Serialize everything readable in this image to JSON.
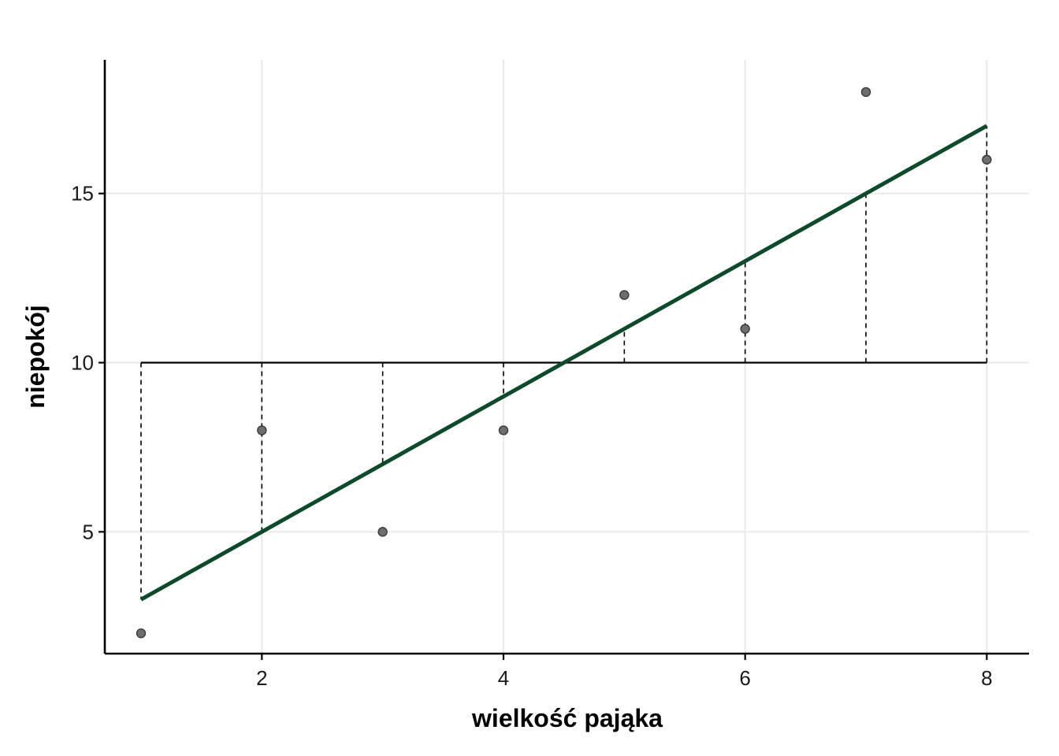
{
  "chart_data": {
    "type": "scatter",
    "xlabel": "wielkość pająka",
    "ylabel": "niepokój",
    "xlim": [
      0.7,
      8.35
    ],
    "ylim": [
      1.4,
      18.95
    ],
    "x_ticks": [
      2,
      4,
      6,
      8
    ],
    "y_ticks": [
      5,
      10,
      15
    ],
    "grid": true,
    "points": {
      "x": [
        1,
        2,
        3,
        4,
        5,
        6,
        7,
        8
      ],
      "y": [
        2,
        8,
        5,
        8,
        12,
        11,
        18,
        16
      ]
    },
    "mean_line": {
      "y": 10,
      "x_from": 1,
      "x_to": 8
    },
    "regression_line": {
      "intercept": 1,
      "slope": 2,
      "x_from": 1,
      "x_to": 8
    },
    "deviations": {
      "from": "mean",
      "to": "regression_line",
      "x": [
        1,
        2,
        3,
        4,
        5,
        6,
        7,
        8
      ]
    },
    "colors": {
      "regression_line": "#0d4a2c",
      "points": "#6e6e6e",
      "mean_line": "#000000"
    }
  }
}
